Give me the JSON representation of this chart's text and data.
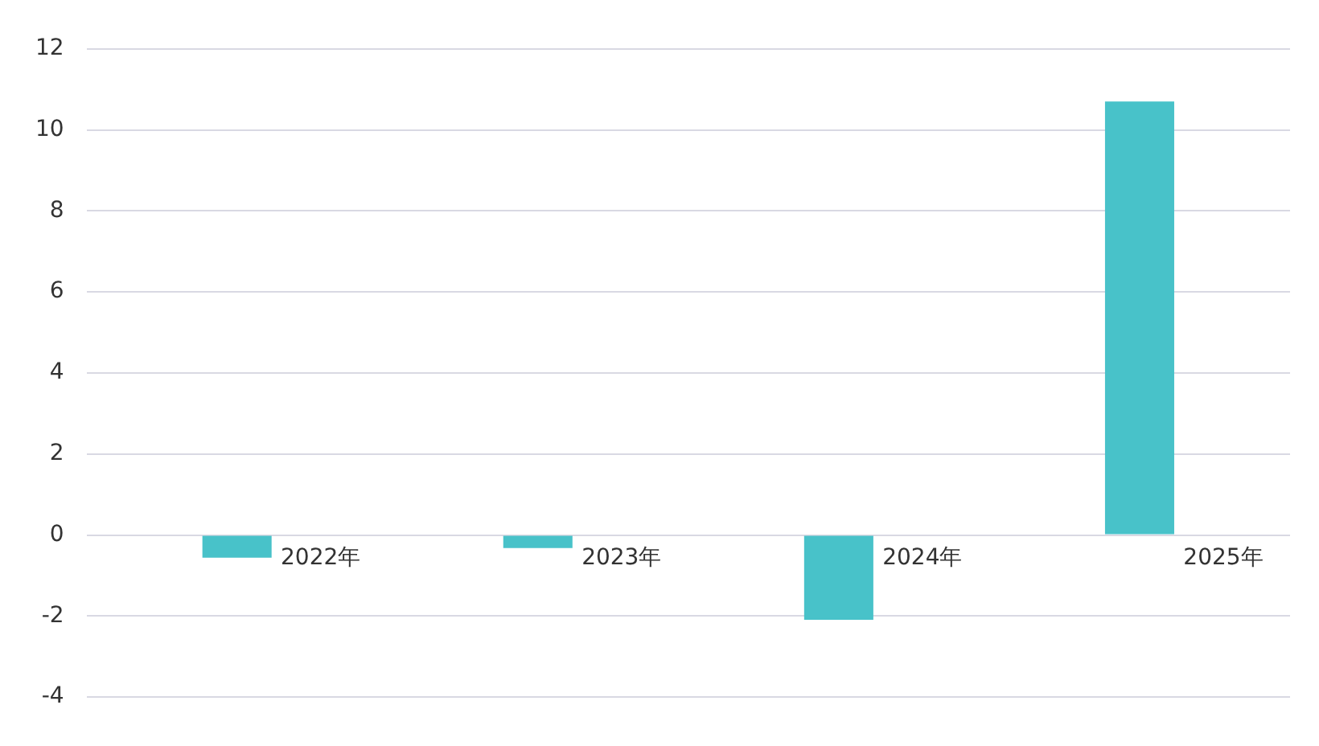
{
  "chart_data": {
    "type": "bar",
    "categories": [
      "2022年",
      "2023年",
      "2024年",
      "2025年"
    ],
    "values": [
      -0.56,
      -0.32,
      -2.09,
      10.7
    ],
    "color": "#48c2c9",
    "ylim": [
      -4,
      12
    ],
    "yticks": [
      -4,
      -2,
      0,
      2,
      4,
      6,
      8,
      10,
      12
    ],
    "grid": "y",
    "legend": false
  }
}
